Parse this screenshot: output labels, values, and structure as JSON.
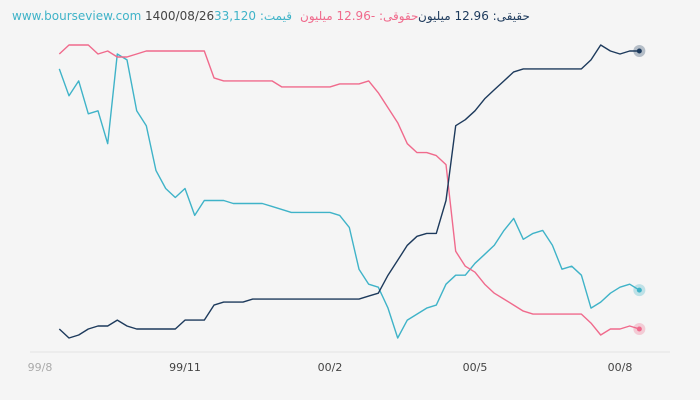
{
  "chart_data": {
    "type": "line",
    "source": "www.bourseview.com",
    "date": "1400/08/26",
    "categories": [
      "99/8",
      null,
      null,
      null,
      null,
      null,
      null,
      null,
      null,
      null,
      null,
      null,
      null,
      null,
      null,
      "99/11",
      null,
      null,
      null,
      null,
      null,
      null,
      null,
      null,
      null,
      null,
      null,
      null,
      null,
      null,
      "00/2",
      null,
      null,
      null,
      null,
      null,
      null,
      null,
      null,
      null,
      null,
      null,
      null,
      null,
      null,
      "00/5",
      null,
      null,
      null,
      null,
      null,
      null,
      null,
      null,
      null,
      null,
      null,
      null,
      null,
      null,
      "00/8",
      null,
      null
    ],
    "series": [
      {
        "name": "قیمت: 33,120",
        "color": "#3fb3c8",
        "values": [
          null,
          null,
          92,
          83,
          88,
          77,
          78,
          67,
          97,
          95,
          78,
          73,
          58,
          52,
          49,
          52,
          43,
          48,
          48,
          48,
          47,
          47,
          47,
          47,
          46,
          45,
          44,
          44,
          44,
          44,
          44,
          43,
          39,
          25,
          20,
          19,
          12,
          2,
          8,
          10,
          12,
          13,
          20,
          23,
          23,
          27,
          30,
          33,
          38,
          42,
          35,
          37,
          38,
          33,
          25,
          26,
          23,
          12,
          14,
          17,
          19,
          20,
          18
        ]
      },
      {
        "name": "حقوقی: -12.96 میلیون",
        "color": "#f06a8c",
        "values": [
          null,
          null,
          97,
          100,
          100,
          100,
          97,
          98,
          96,
          96,
          97,
          98,
          98,
          98,
          98,
          98,
          98,
          98,
          89,
          88,
          88,
          88,
          88,
          88,
          88,
          86,
          86,
          86,
          86,
          86,
          86,
          87,
          87,
          87,
          88,
          84,
          79,
          74,
          67,
          64,
          64,
          63,
          60,
          31,
          26,
          24,
          20,
          17,
          15,
          13,
          11,
          10,
          10,
          10,
          10,
          10,
          10,
          7,
          3,
          5,
          5,
          6,
          5
        ]
      },
      {
        "name": "حقیقی: 12.96 میلیون",
        "color": "#1d3a5c",
        "values": [
          null,
          null,
          5,
          2,
          3,
          5,
          6,
          6,
          8,
          6,
          5,
          5,
          5,
          5,
          5,
          8,
          8,
          8,
          13,
          14,
          14,
          14,
          15,
          15,
          15,
          15,
          15,
          15,
          15,
          15,
          15,
          15,
          15,
          15,
          16,
          17,
          23,
          28,
          33,
          36,
          37,
          37,
          48,
          73,
          75,
          78,
          82,
          85,
          88,
          91,
          92,
          92,
          92,
          92,
          92,
          92,
          92,
          95,
          100,
          98,
          97,
          98,
          98
        ]
      }
    ]
  }
}
